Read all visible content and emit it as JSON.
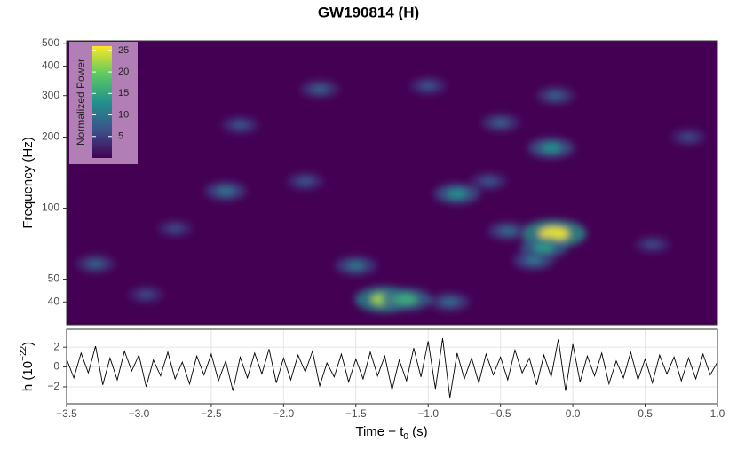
{
  "chart_data": [
    {
      "type": "heatmap",
      "title": "GW190814 (H)",
      "y_label": "Frequency (Hz)",
      "ylim": [
        32,
        512
      ],
      "y_log": true,
      "yticks": [
        40,
        50,
        100,
        200,
        300,
        400,
        500
      ],
      "xlim": [
        -3.5,
        1.0
      ],
      "colormap": [
        "#440154",
        "#3b528b",
        "#21918c",
        "#5ec962",
        "#fde725"
      ],
      "colorbar": {
        "label": "Normalized Power",
        "lim": [
          0,
          26
        ],
        "ticks": [
          5,
          10,
          15,
          20,
          25
        ]
      },
      "hotspots": [
        {
          "time": -1.3,
          "frequency": 41,
          "power": 22
        },
        {
          "time": -1.15,
          "frequency": 41,
          "power": 16
        },
        {
          "time": -0.13,
          "frequency": 78,
          "power": 25
        },
        {
          "time": -0.2,
          "frequency": 68,
          "power": 14
        },
        {
          "time": -0.27,
          "frequency": 60,
          "power": 10
        },
        {
          "time": -0.15,
          "frequency": 180,
          "power": 13
        },
        {
          "time": -0.8,
          "frequency": 115,
          "power": 13
        },
        {
          "time": -2.4,
          "frequency": 118,
          "power": 10
        },
        {
          "time": -1.5,
          "frequency": 57,
          "power": 10
        },
        {
          "time": -3.3,
          "frequency": 58,
          "power": 8
        },
        {
          "time": -0.45,
          "frequency": 80,
          "power": 9
        },
        {
          "time": -0.5,
          "frequency": 230,
          "power": 8
        },
        {
          "time": -0.85,
          "frequency": 40,
          "power": 9
        },
        {
          "time": -2.95,
          "frequency": 43,
          "power": 6
        },
        {
          "time": -0.12,
          "frequency": 300,
          "power": 8
        },
        {
          "time": -2.3,
          "frequency": 225,
          "power": 7
        },
        {
          "time": -1.0,
          "frequency": 330,
          "power": 7
        },
        {
          "time": -1.75,
          "frequency": 320,
          "power": 8
        },
        {
          "time": -0.58,
          "frequency": 130,
          "power": 7
        },
        {
          "time": 0.55,
          "frequency": 70,
          "power": 6
        },
        {
          "time": 0.8,
          "frequency": 200,
          "power": 6
        },
        {
          "time": -1.85,
          "frequency": 130,
          "power": 7
        },
        {
          "time": -2.75,
          "frequency": 82,
          "power": 6
        }
      ]
    },
    {
      "type": "line",
      "color": "#000000",
      "y_label": {
        "text": "h (10",
        "superscript": "−22",
        "suffix": ")"
      },
      "x_label": {
        "text": "Time − t",
        "subscript": "0",
        "suffix": " (s)"
      },
      "xlim": [
        -3.5,
        1.0
      ],
      "xticks": [
        {
          "value": -3.5,
          "label": "−3.5"
        },
        {
          "value": -3.0,
          "label": "−3.0"
        },
        {
          "value": -2.5,
          "label": "−2.5"
        },
        {
          "value": -2.0,
          "label": "−2.0"
        },
        {
          "value": -1.5,
          "label": "−1.5"
        },
        {
          "value": -1.0,
          "label": "−1.0"
        },
        {
          "value": -0.5,
          "label": "−0.5"
        },
        {
          "value": 0.0,
          "label": "0.0"
        },
        0.5,
        {
          "value": 1.0,
          "label": "1.0"
        }
      ],
      "ylim": [
        -3.7,
        3.8
      ],
      "yticks": [
        {
          "value": -2,
          "label": "−2"
        },
        0,
        2
      ],
      "grid": true,
      "x": [
        -3.5,
        -3.45,
        -3.4,
        -3.35,
        -3.3,
        -3.25,
        -3.2,
        -3.15,
        -3.1,
        -3.05,
        -3.0,
        -2.95,
        -2.9,
        -2.85,
        -2.8,
        -2.75,
        -2.7,
        -2.65,
        -2.6,
        -2.55,
        -2.5,
        -2.45,
        -2.4,
        -2.35,
        -2.3,
        -2.25,
        -2.2,
        -2.15,
        -2.1,
        -2.05,
        -2.0,
        -1.95,
        -1.9,
        -1.85,
        -1.8,
        -1.75,
        -1.7,
        -1.65,
        -1.6,
        -1.55,
        -1.5,
        -1.45,
        -1.4,
        -1.35,
        -1.3,
        -1.25,
        -1.2,
        -1.15,
        -1.1,
        -1.05,
        -1.0,
        -0.95,
        -0.9,
        -0.85,
        -0.8,
        -0.75,
        -0.7,
        -0.65,
        -0.6,
        -0.55,
        -0.5,
        -0.45,
        -0.4,
        -0.35,
        -0.3,
        -0.25,
        -0.2,
        -0.15,
        -0.1,
        -0.05,
        0.0,
        0.05,
        0.1,
        0.15,
        0.2,
        0.25,
        0.3,
        0.35,
        0.4,
        0.45,
        0.5,
        0.55,
        0.6,
        0.65,
        0.7,
        0.75,
        0.8,
        0.85,
        0.9,
        0.95,
        1.0
      ],
      "values": [
        0.8,
        -1.1,
        1.4,
        -0.6,
        2.1,
        -1.8,
        0.9,
        -1.3,
        1.6,
        -0.4,
        1.2,
        -2.0,
        0.7,
        -0.9,
        1.5,
        -1.2,
        0.5,
        -1.7,
        1.1,
        -0.8,
        1.3,
        -1.4,
        0.6,
        -2.4,
        1.0,
        -1.1,
        1.4,
        -0.7,
        1.8,
        -1.6,
        0.9,
        -1.3,
        1.2,
        -0.5,
        1.6,
        -1.9,
        0.4,
        -1.0,
        1.3,
        -1.5,
        0.8,
        -1.2,
        1.5,
        -0.9,
        1.1,
        -2.3,
        0.7,
        -1.4,
        1.9,
        -1.0,
        2.6,
        -2.2,
        2.9,
        -3.1,
        1.4,
        -1.2,
        0.9,
        -1.6,
        1.3,
        -0.8,
        1.0,
        -1.3,
        1.7,
        -0.6,
        0.9,
        -1.8,
        1.2,
        -1.0,
        2.8,
        -2.4,
        2.3,
        -1.5,
        1.1,
        -0.9,
        1.4,
        -1.7,
        0.6,
        -1.1,
        1.5,
        -1.3,
        0.8,
        -1.6,
        1.2,
        -0.7,
        1.0,
        -1.4,
        0.9,
        -1.2,
        1.3,
        -0.8,
        0.5
      ]
    }
  ]
}
